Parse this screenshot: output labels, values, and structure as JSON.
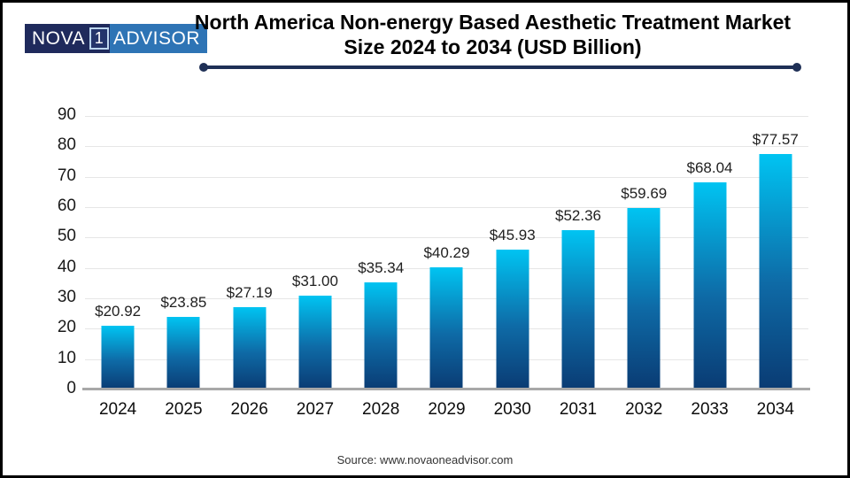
{
  "logo": {
    "part_nova": "NOVA",
    "part_one": "1",
    "part_advisor": "ADVISOR"
  },
  "header": {
    "title_line1": "North America Non-energy Based Aesthetic Treatment Market",
    "title_line2": "Size 2024 to 2034 (USD Billion)"
  },
  "footer": {
    "source": "Source: www.novaoneadvisor.com"
  },
  "colors": {
    "bar_gradient_top": "#00c4f2",
    "bar_gradient_bottom": "#0a3b73",
    "divider": "#1f3056",
    "logo_navy": "#1f2a5c",
    "logo_blue": "#2e74b5",
    "gridline": "#e6e6e6",
    "axis_line": "#a8a8a8"
  },
  "chart_data": {
    "type": "bar",
    "title": "North America Non-energy Based Aesthetic Treatment Market Size 2024 to 2034 (USD Billion)",
    "categories": [
      "2024",
      "2025",
      "2026",
      "2027",
      "2028",
      "2029",
      "2030",
      "2031",
      "2032",
      "2033",
      "2034"
    ],
    "values": [
      20.92,
      23.85,
      27.19,
      31.0,
      35.34,
      40.29,
      45.93,
      52.36,
      59.69,
      68.04,
      77.57
    ],
    "value_labels": [
      "$20.92",
      "$23.85",
      "$27.19",
      "$31.00",
      "$35.34",
      "$40.29",
      "$45.93",
      "$52.36",
      "$59.69",
      "$68.04",
      "$77.57"
    ],
    "xlabel": "",
    "ylabel": "",
    "ylim": [
      0,
      90
    ],
    "y_ticks": [
      0,
      10,
      20,
      30,
      40,
      50,
      60,
      70,
      80,
      90
    ],
    "grid": true,
    "legend": false,
    "unit": "USD Billion"
  }
}
